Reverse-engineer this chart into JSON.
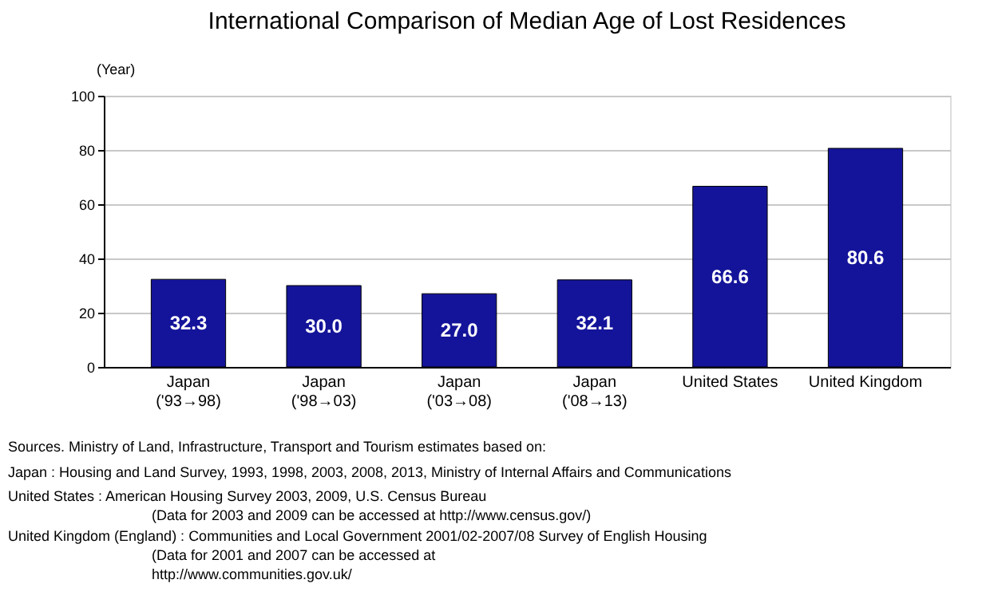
{
  "chart_data": {
    "type": "bar",
    "title": "International Comparison of Median Age of Lost Residences",
    "ylabel": "(Year)",
    "categories": [
      "Japan\n('93→98)",
      "Japan\n('98→03)",
      "Japan\n('03→08)",
      "Japan\n('08→13)",
      "United States",
      "United Kingdom"
    ],
    "values": [
      32.3,
      30.0,
      27.0,
      32.1,
      66.6,
      80.6
    ],
    "value_labels": [
      "32.3",
      "30.0",
      "27.0",
      "32.1",
      "66.6",
      "80.6"
    ],
    "color": "#14149a",
    "ylim": [
      0,
      100
    ],
    "yticks": [
      0,
      20,
      40,
      60,
      80,
      100
    ],
    "grid": "y",
    "annotations": [
      "Sources. Ministry of Land, Infrastructure, Transport and Tourism estimates based on:",
      "Japan : Housing and Land Survey, 1993, 1998, 2003, 2008, 2013, Ministry of Internal Affairs and Communications",
      "United States : American Housing Survey 2003, 2009, U.S. Census Bureau\n(Data for 2003 and 2009 can be accessed at http://www.census.gov/)",
      "United Kingdom (England) : Communities and Local Government 2001/02-2007/08 Survey of English Housing\n(Data for 2001 and 2007 can be accessed at\nhttp://www.communities.gov.uk/"
    ]
  }
}
